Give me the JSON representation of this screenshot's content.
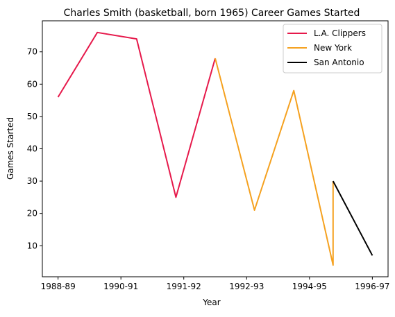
{
  "chart_data": {
    "type": "line",
    "title": "Charles Smith (basketball, born 1965) Career Games Started",
    "xlabel": "Year",
    "ylabel": "Games Started",
    "x_tick_labels": [
      "1988-89",
      "1990-91",
      "1991-92",
      "1992-93",
      "1994-95",
      "1996-97"
    ],
    "y_ticks": [
      10,
      20,
      30,
      40,
      50,
      60,
      70
    ],
    "ylim": [
      0.4,
      79.6
    ],
    "grid": false,
    "legend_position": "top-right",
    "series": [
      {
        "name": "L.A. Clippers",
        "color": "#e6194b",
        "points": [
          {
            "x": 0,
            "y": 56
          },
          {
            "x": 1,
            "y": 76
          },
          {
            "x": 2,
            "y": 74
          },
          {
            "x": 3,
            "y": 25
          },
          {
            "x": 4,
            "y": 68
          }
        ]
      },
      {
        "name": "New York",
        "color": "#f5a11f",
        "points": [
          {
            "x": 4,
            "y": 68
          },
          {
            "x": 5,
            "y": 21
          },
          {
            "x": 6,
            "y": 58
          },
          {
            "x": 7,
            "y": 4
          },
          {
            "x": 7,
            "y": 30
          }
        ]
      },
      {
        "name": "San Antonio",
        "color": "#000000",
        "points": [
          {
            "x": 7,
            "y": 30
          },
          {
            "x": 8,
            "y": 7
          }
        ]
      }
    ]
  }
}
